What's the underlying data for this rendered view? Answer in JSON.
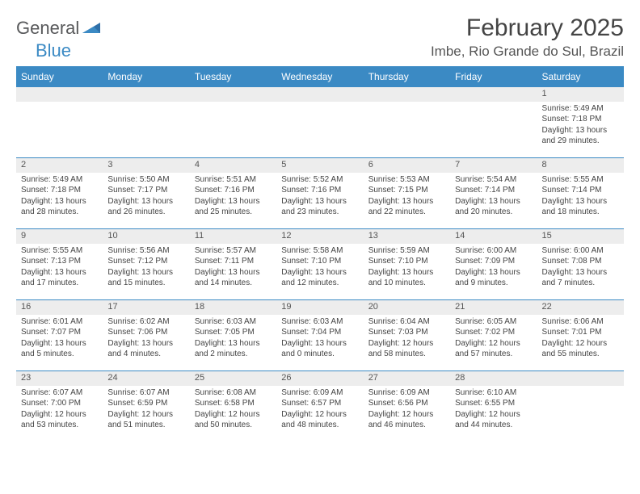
{
  "brand": {
    "part1": "General",
    "part2": "Blue"
  },
  "title": "February 2025",
  "location": "Imbe, Rio Grande do Sul, Brazil",
  "colors": {
    "header_bg": "#3b8ac4",
    "header_text": "#ffffff",
    "daynum_bg": "#ededed",
    "border": "#3b8ac4",
    "body_text": "#444444",
    "logo_gray": "#58595b",
    "logo_blue": "#3b8ac4"
  },
  "weekdays": [
    "Sunday",
    "Monday",
    "Tuesday",
    "Wednesday",
    "Thursday",
    "Friday",
    "Saturday"
  ],
  "weeks": [
    {
      "nums": [
        "",
        "",
        "",
        "",
        "",
        "",
        "1"
      ],
      "cells": [
        [],
        [],
        [],
        [],
        [],
        [],
        [
          "Sunrise: 5:49 AM",
          "Sunset: 7:18 PM",
          "Daylight: 13 hours",
          "and 29 minutes."
        ]
      ]
    },
    {
      "nums": [
        "2",
        "3",
        "4",
        "5",
        "6",
        "7",
        "8"
      ],
      "cells": [
        [
          "Sunrise: 5:49 AM",
          "Sunset: 7:18 PM",
          "Daylight: 13 hours",
          "and 28 minutes."
        ],
        [
          "Sunrise: 5:50 AM",
          "Sunset: 7:17 PM",
          "Daylight: 13 hours",
          "and 26 minutes."
        ],
        [
          "Sunrise: 5:51 AM",
          "Sunset: 7:16 PM",
          "Daylight: 13 hours",
          "and 25 minutes."
        ],
        [
          "Sunrise: 5:52 AM",
          "Sunset: 7:16 PM",
          "Daylight: 13 hours",
          "and 23 minutes."
        ],
        [
          "Sunrise: 5:53 AM",
          "Sunset: 7:15 PM",
          "Daylight: 13 hours",
          "and 22 minutes."
        ],
        [
          "Sunrise: 5:54 AM",
          "Sunset: 7:14 PM",
          "Daylight: 13 hours",
          "and 20 minutes."
        ],
        [
          "Sunrise: 5:55 AM",
          "Sunset: 7:14 PM",
          "Daylight: 13 hours",
          "and 18 minutes."
        ]
      ]
    },
    {
      "nums": [
        "9",
        "10",
        "11",
        "12",
        "13",
        "14",
        "15"
      ],
      "cells": [
        [
          "Sunrise: 5:55 AM",
          "Sunset: 7:13 PM",
          "Daylight: 13 hours",
          "and 17 minutes."
        ],
        [
          "Sunrise: 5:56 AM",
          "Sunset: 7:12 PM",
          "Daylight: 13 hours",
          "and 15 minutes."
        ],
        [
          "Sunrise: 5:57 AM",
          "Sunset: 7:11 PM",
          "Daylight: 13 hours",
          "and 14 minutes."
        ],
        [
          "Sunrise: 5:58 AM",
          "Sunset: 7:10 PM",
          "Daylight: 13 hours",
          "and 12 minutes."
        ],
        [
          "Sunrise: 5:59 AM",
          "Sunset: 7:10 PM",
          "Daylight: 13 hours",
          "and 10 minutes."
        ],
        [
          "Sunrise: 6:00 AM",
          "Sunset: 7:09 PM",
          "Daylight: 13 hours",
          "and 9 minutes."
        ],
        [
          "Sunrise: 6:00 AM",
          "Sunset: 7:08 PM",
          "Daylight: 13 hours",
          "and 7 minutes."
        ]
      ]
    },
    {
      "nums": [
        "16",
        "17",
        "18",
        "19",
        "20",
        "21",
        "22"
      ],
      "cells": [
        [
          "Sunrise: 6:01 AM",
          "Sunset: 7:07 PM",
          "Daylight: 13 hours",
          "and 5 minutes."
        ],
        [
          "Sunrise: 6:02 AM",
          "Sunset: 7:06 PM",
          "Daylight: 13 hours",
          "and 4 minutes."
        ],
        [
          "Sunrise: 6:03 AM",
          "Sunset: 7:05 PM",
          "Daylight: 13 hours",
          "and 2 minutes."
        ],
        [
          "Sunrise: 6:03 AM",
          "Sunset: 7:04 PM",
          "Daylight: 13 hours",
          "and 0 minutes."
        ],
        [
          "Sunrise: 6:04 AM",
          "Sunset: 7:03 PM",
          "Daylight: 12 hours",
          "and 58 minutes."
        ],
        [
          "Sunrise: 6:05 AM",
          "Sunset: 7:02 PM",
          "Daylight: 12 hours",
          "and 57 minutes."
        ],
        [
          "Sunrise: 6:06 AM",
          "Sunset: 7:01 PM",
          "Daylight: 12 hours",
          "and 55 minutes."
        ]
      ]
    },
    {
      "nums": [
        "23",
        "24",
        "25",
        "26",
        "27",
        "28",
        ""
      ],
      "cells": [
        [
          "Sunrise: 6:07 AM",
          "Sunset: 7:00 PM",
          "Daylight: 12 hours",
          "and 53 minutes."
        ],
        [
          "Sunrise: 6:07 AM",
          "Sunset: 6:59 PM",
          "Daylight: 12 hours",
          "and 51 minutes."
        ],
        [
          "Sunrise: 6:08 AM",
          "Sunset: 6:58 PM",
          "Daylight: 12 hours",
          "and 50 minutes."
        ],
        [
          "Sunrise: 6:09 AM",
          "Sunset: 6:57 PM",
          "Daylight: 12 hours",
          "and 48 minutes."
        ],
        [
          "Sunrise: 6:09 AM",
          "Sunset: 6:56 PM",
          "Daylight: 12 hours",
          "and 46 minutes."
        ],
        [
          "Sunrise: 6:10 AM",
          "Sunset: 6:55 PM",
          "Daylight: 12 hours",
          "and 44 minutes."
        ],
        []
      ]
    }
  ]
}
